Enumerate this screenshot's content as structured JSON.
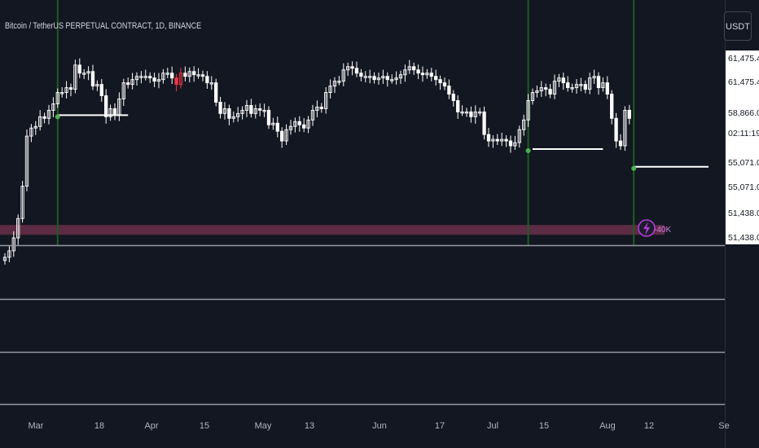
{
  "header": {
    "symbol_title": "Bitcoin / TetherUS PERPETUAL CONTRACT, 1D, BINANCE",
    "currency_button": "USDT"
  },
  "colors": {
    "background": "#131722",
    "candle": "#ffffff",
    "highlight_candle": "#f23645",
    "signal_line": "#1b5e20",
    "signal_dot": "#4caf50",
    "zone_band": "#6a2f4a",
    "separator": "#9598a1",
    "flash_badge": "#b23fd8",
    "price_axis_bg": "#ffffff",
    "price_axis_text": "#131722"
  },
  "annotations": {
    "flash_label": "-40K",
    "flash_icon": "lightning-bolt-icon"
  },
  "chart_data": {
    "type": "candlestick",
    "title": "Bitcoin / TetherUS PERPETUAL CONTRACT, 1D, BINANCE",
    "timeframe": "1D",
    "x_tick_labels": [
      "Mar",
      "18",
      "Apr",
      "15",
      "May",
      "13",
      "Jun",
      "17",
      "Jul",
      "15",
      "Aug",
      "12",
      "Se"
    ],
    "y_tick_labels": [
      "61,475.4",
      "61,475.4",
      "58,866.0",
      "02:11:19",
      "55,071.0",
      "55,071.0",
      "51,438.0",
      "51,438.0"
    ],
    "series": [
      {
        "kind": "candles",
        "close": [
          50500,
          50900,
          51700,
          52900,
          54900,
          58000,
          58500,
          58600,
          59200,
          59100,
          59600,
          60000,
          60700,
          60700,
          61000,
          60900,
          62400,
          61900,
          61900,
          62000,
          61100,
          61200,
          60500,
          59200,
          59700,
          59300,
          60300,
          61300,
          61200,
          61500,
          61700,
          61700,
          61700,
          61600,
          61400,
          61500,
          61900,
          61900,
          61600,
          61200,
          61900,
          61700,
          62000,
          61800,
          61800,
          61700,
          61300,
          61300,
          60100,
          59400,
          59700,
          59100,
          59200,
          59400,
          59600,
          59900,
          59400,
          59700,
          59600,
          59600,
          58700,
          58800,
          58300,
          57700,
          58400,
          58600,
          58900,
          58700,
          58500,
          59000,
          59600,
          59800,
          59700,
          60700,
          61100,
          61400,
          61400,
          62100,
          62300,
          62200,
          61900,
          61700,
          61700,
          61700,
          61500,
          61600,
          61700,
          61500,
          61500,
          61600,
          61800,
          62100,
          62300,
          62100,
          61900,
          61800,
          61900,
          61700,
          61500,
          61300,
          61100,
          60600,
          60200,
          59500,
          59500,
          59500,
          59200,
          59500,
          59500,
          58100,
          57700,
          57800,
          57700,
          57800,
          57700,
          57400,
          57600,
          58400,
          59000,
          60200,
          60700,
          60800,
          61000,
          60900,
          60600,
          61400,
          61600,
          61300,
          61000,
          61000,
          61200,
          61200,
          60900,
          61600,
          61700,
          61000,
          61300,
          60600,
          59100,
          57700,
          57400,
          59600,
          59100
        ],
        "red_candle_indices": [
          39,
          40
        ]
      },
      {
        "kind": "signals",
        "signal_bar_indices": [
          12,
          119,
          143
        ],
        "support_lines": [
          {
            "start_bar": 12,
            "end_bar": 28,
            "price": 59300
          },
          {
            "start_bar": 120,
            "end_bar": 136,
            "price": 57200
          },
          {
            "start_bar": 143,
            "end_bar": 160,
            "price": 56100
          }
        ]
      },
      {
        "kind": "zone",
        "name": "-40K",
        "price_from": 52200,
        "price_to": 52500
      }
    ],
    "ylim": [
      51300,
      63300
    ],
    "grid": false,
    "legend": "none"
  }
}
